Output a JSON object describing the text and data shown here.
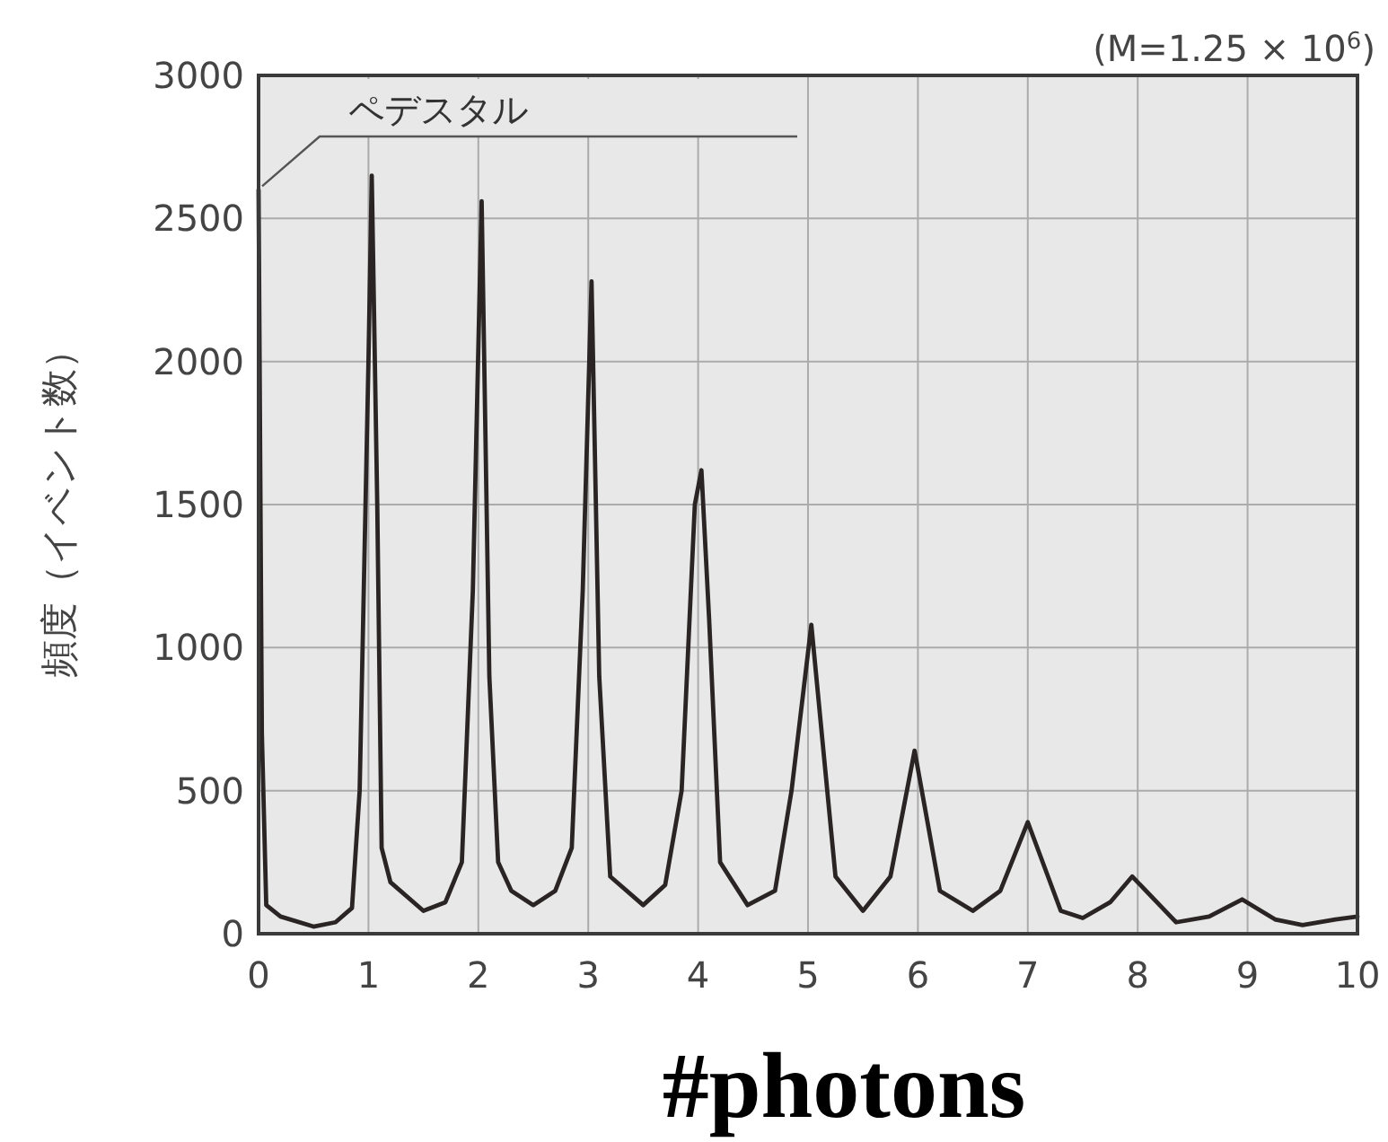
{
  "chart_data": {
    "type": "line",
    "xlabel": "#photons",
    "ylabel": "頻度（イベント数）",
    "annotations": [
      {
        "text": "ペデスタル",
        "x": 0,
        "y": 2600
      },
      "(M=1.25 × 10$^{6}$)"
    ],
    "x": [
      0,
      0.03,
      0.07,
      0.2,
      0.5,
      0.7,
      0.85,
      0.92,
      1.0,
      1.03,
      1.08,
      1.12,
      1.2,
      1.5,
      1.7,
      1.85,
      1.95,
      2.03,
      2.1,
      2.18,
      2.3,
      2.5,
      2.7,
      2.85,
      2.95,
      3.03,
      3.1,
      3.2,
      3.5,
      3.7,
      3.85,
      3.97,
      4.03,
      4.1,
      4.2,
      4.45,
      4.7,
      4.85,
      5.03,
      5.25,
      5.5,
      5.75,
      5.97,
      6.2,
      6.5,
      6.75,
      7.0,
      7.3,
      7.5,
      7.75,
      7.95,
      8.35,
      8.65,
      8.95,
      9.25,
      9.5,
      9.8,
      10
    ],
    "series": [
      {
        "color": "#2a2424",
        "values": [
          2600,
          700,
          100,
          60,
          25,
          40,
          90,
          500,
          2000,
          2650,
          1500,
          300,
          180,
          80,
          110,
          250,
          1200,
          2560,
          900,
          250,
          150,
          100,
          150,
          300,
          1200,
          2280,
          900,
          200,
          100,
          170,
          500,
          1500,
          1620,
          1100,
          250,
          100,
          150,
          500,
          1080,
          200,
          80,
          200,
          640,
          150,
          80,
          150,
          390,
          80,
          55,
          110,
          200,
          40,
          60,
          120,
          50,
          30,
          50,
          60
        ]
      }
    ],
    "xlim": [
      0,
      10
    ],
    "xticks": [
      0,
      1,
      2,
      3,
      4,
      5,
      6,
      7,
      8,
      9,
      10
    ],
    "ylim": [
      0,
      3000
    ],
    "yticks": [
      0,
      500,
      1000,
      1500,
      2000,
      2500,
      3000
    ],
    "grid": true,
    "marker": "none",
    "line_style": "solid"
  }
}
